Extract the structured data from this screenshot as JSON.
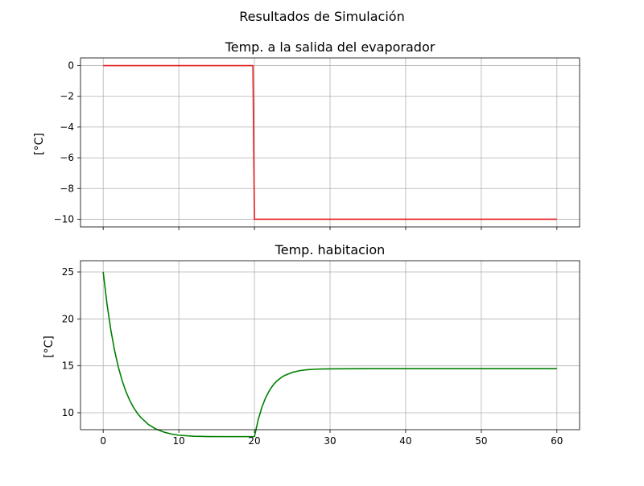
{
  "figure": {
    "suptitle": "Resultados de Simulación"
  },
  "chart_data": [
    {
      "type": "line",
      "title": "Temp. a la salida del evaporador",
      "xlabel": "",
      "ylabel": "[°C]",
      "xlim": [
        -3,
        63
      ],
      "ylim": [
        -10.5,
        0.5
      ],
      "xticks": [
        0,
        10,
        20,
        30,
        40,
        50,
        60
      ],
      "yticks": [
        0,
        -2,
        -4,
        -6,
        -8,
        -10
      ],
      "ytick_labels": [
        "0",
        "−2",
        "−4",
        "−6",
        "−8",
        "−10"
      ],
      "show_xtick_labels": false,
      "grid": true,
      "series": [
        {
          "color": "#e31a1c",
          "x": [
            0,
            19.8,
            20.0,
            60
          ],
          "y": [
            0,
            0,
            -10,
            -10
          ]
        }
      ]
    },
    {
      "type": "line",
      "title": "Temp. habitacion",
      "xlabel": "",
      "ylabel": "[°C]",
      "xlim": [
        -3,
        63
      ],
      "ylim": [
        8.2,
        26.2
      ],
      "xticks": [
        0,
        10,
        20,
        30,
        40,
        50,
        60
      ],
      "xtick_labels": [
        "0",
        "10",
        "20",
        "30",
        "40",
        "50",
        "60"
      ],
      "yticks": [
        10,
        15,
        20,
        25
      ],
      "ytick_labels": [
        "10",
        "15",
        "20",
        "25"
      ],
      "show_xtick_labels": true,
      "grid": true,
      "series": [
        {
          "color": "#008000",
          "x": [
            0,
            0.5,
            1,
            1.5,
            2,
            2.5,
            3,
            3.5,
            4,
            4.5,
            5,
            6,
            7,
            8,
            9,
            10,
            12,
            14,
            16,
            18,
            20,
            20.5,
            21,
            21.5,
            22,
            22.5,
            23,
            23.5,
            24,
            25,
            26,
            27,
            28,
            29,
            30,
            32,
            35,
            40,
            45,
            50,
            55,
            60
          ],
          "y": [
            25.0,
            21.61,
            18.87,
            16.66,
            14.88,
            13.44,
            12.28,
            11.34,
            10.58,
            9.97,
            9.48,
            8.74,
            8.26,
            7.95,
            7.74,
            7.61,
            7.5,
            7.47,
            7.46,
            7.46,
            7.46,
            9.26,
            10.62,
            11.64,
            12.4,
            12.98,
            13.41,
            13.73,
            13.98,
            14.3,
            14.49,
            14.59,
            14.64,
            14.67,
            14.68,
            14.69,
            14.7,
            14.7,
            14.7,
            14.7,
            14.7,
            14.7
          ]
        }
      ]
    }
  ]
}
